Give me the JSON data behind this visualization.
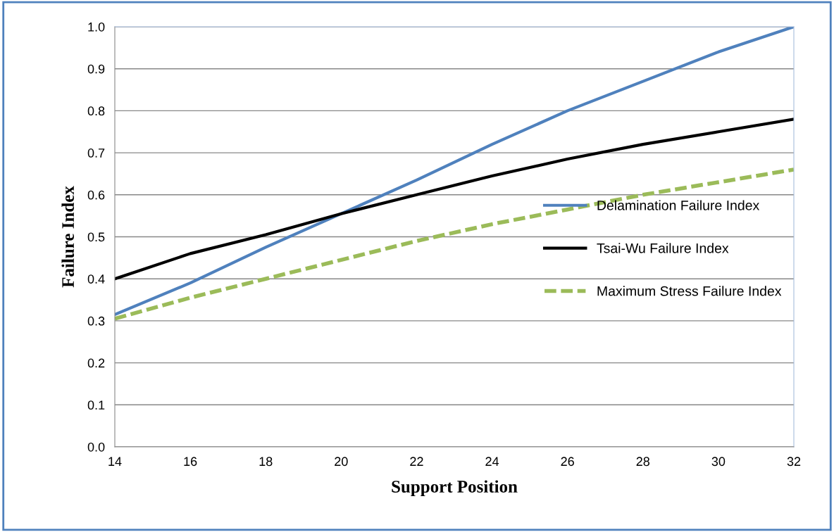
{
  "chart_data": {
    "type": "line",
    "xlabel": "Support Position",
    "ylabel": "Failure Index",
    "x": [
      14,
      16,
      18,
      20,
      22,
      24,
      26,
      28,
      30,
      32
    ],
    "series": [
      {
        "name": "Delamination Failure Index",
        "color": "#4f81bd",
        "line_style": "solid",
        "values": [
          0.315,
          0.39,
          0.475,
          0.555,
          0.635,
          0.72,
          0.8,
          0.87,
          0.94,
          1.0
        ]
      },
      {
        "name": "Tsai-Wu Failure Index",
        "color": "#000000",
        "line_style": "solid",
        "values": [
          0.4,
          0.46,
          0.505,
          0.555,
          0.6,
          0.645,
          0.685,
          0.72,
          0.75,
          0.78
        ]
      },
      {
        "name": "Maximum Stress Failure Index",
        "color": "#9bbb59",
        "line_style": "dashed",
        "values": [
          0.305,
          0.355,
          0.4,
          0.445,
          0.49,
          0.53,
          0.565,
          0.6,
          0.63,
          0.66
        ]
      }
    ],
    "xlim": [
      14,
      32
    ],
    "xticks": [
      14,
      16,
      18,
      20,
      22,
      24,
      26,
      28,
      30,
      32
    ],
    "ylim": [
      0,
      1
    ],
    "yticks": [
      {
        "value": 0,
        "label": "0.0"
      },
      {
        "value": 0.1,
        "label": "0.1"
      },
      {
        "value": 0.2,
        "label": "0.2"
      },
      {
        "value": 0.3,
        "label": "0.3"
      },
      {
        "value": 0.4,
        "label": "0.4"
      },
      {
        "value": 0.5,
        "label": "0.5"
      },
      {
        "value": 0.6,
        "label": "0.6"
      },
      {
        "value": 0.7,
        "label": "0.7"
      },
      {
        "value": 0.8,
        "label": "0.8"
      },
      {
        "value": 0.9,
        "label": "0.9"
      },
      {
        "value": 1,
        "label": "1.0"
      }
    ],
    "grid": "y",
    "legend": "right",
    "marker": "none"
  }
}
